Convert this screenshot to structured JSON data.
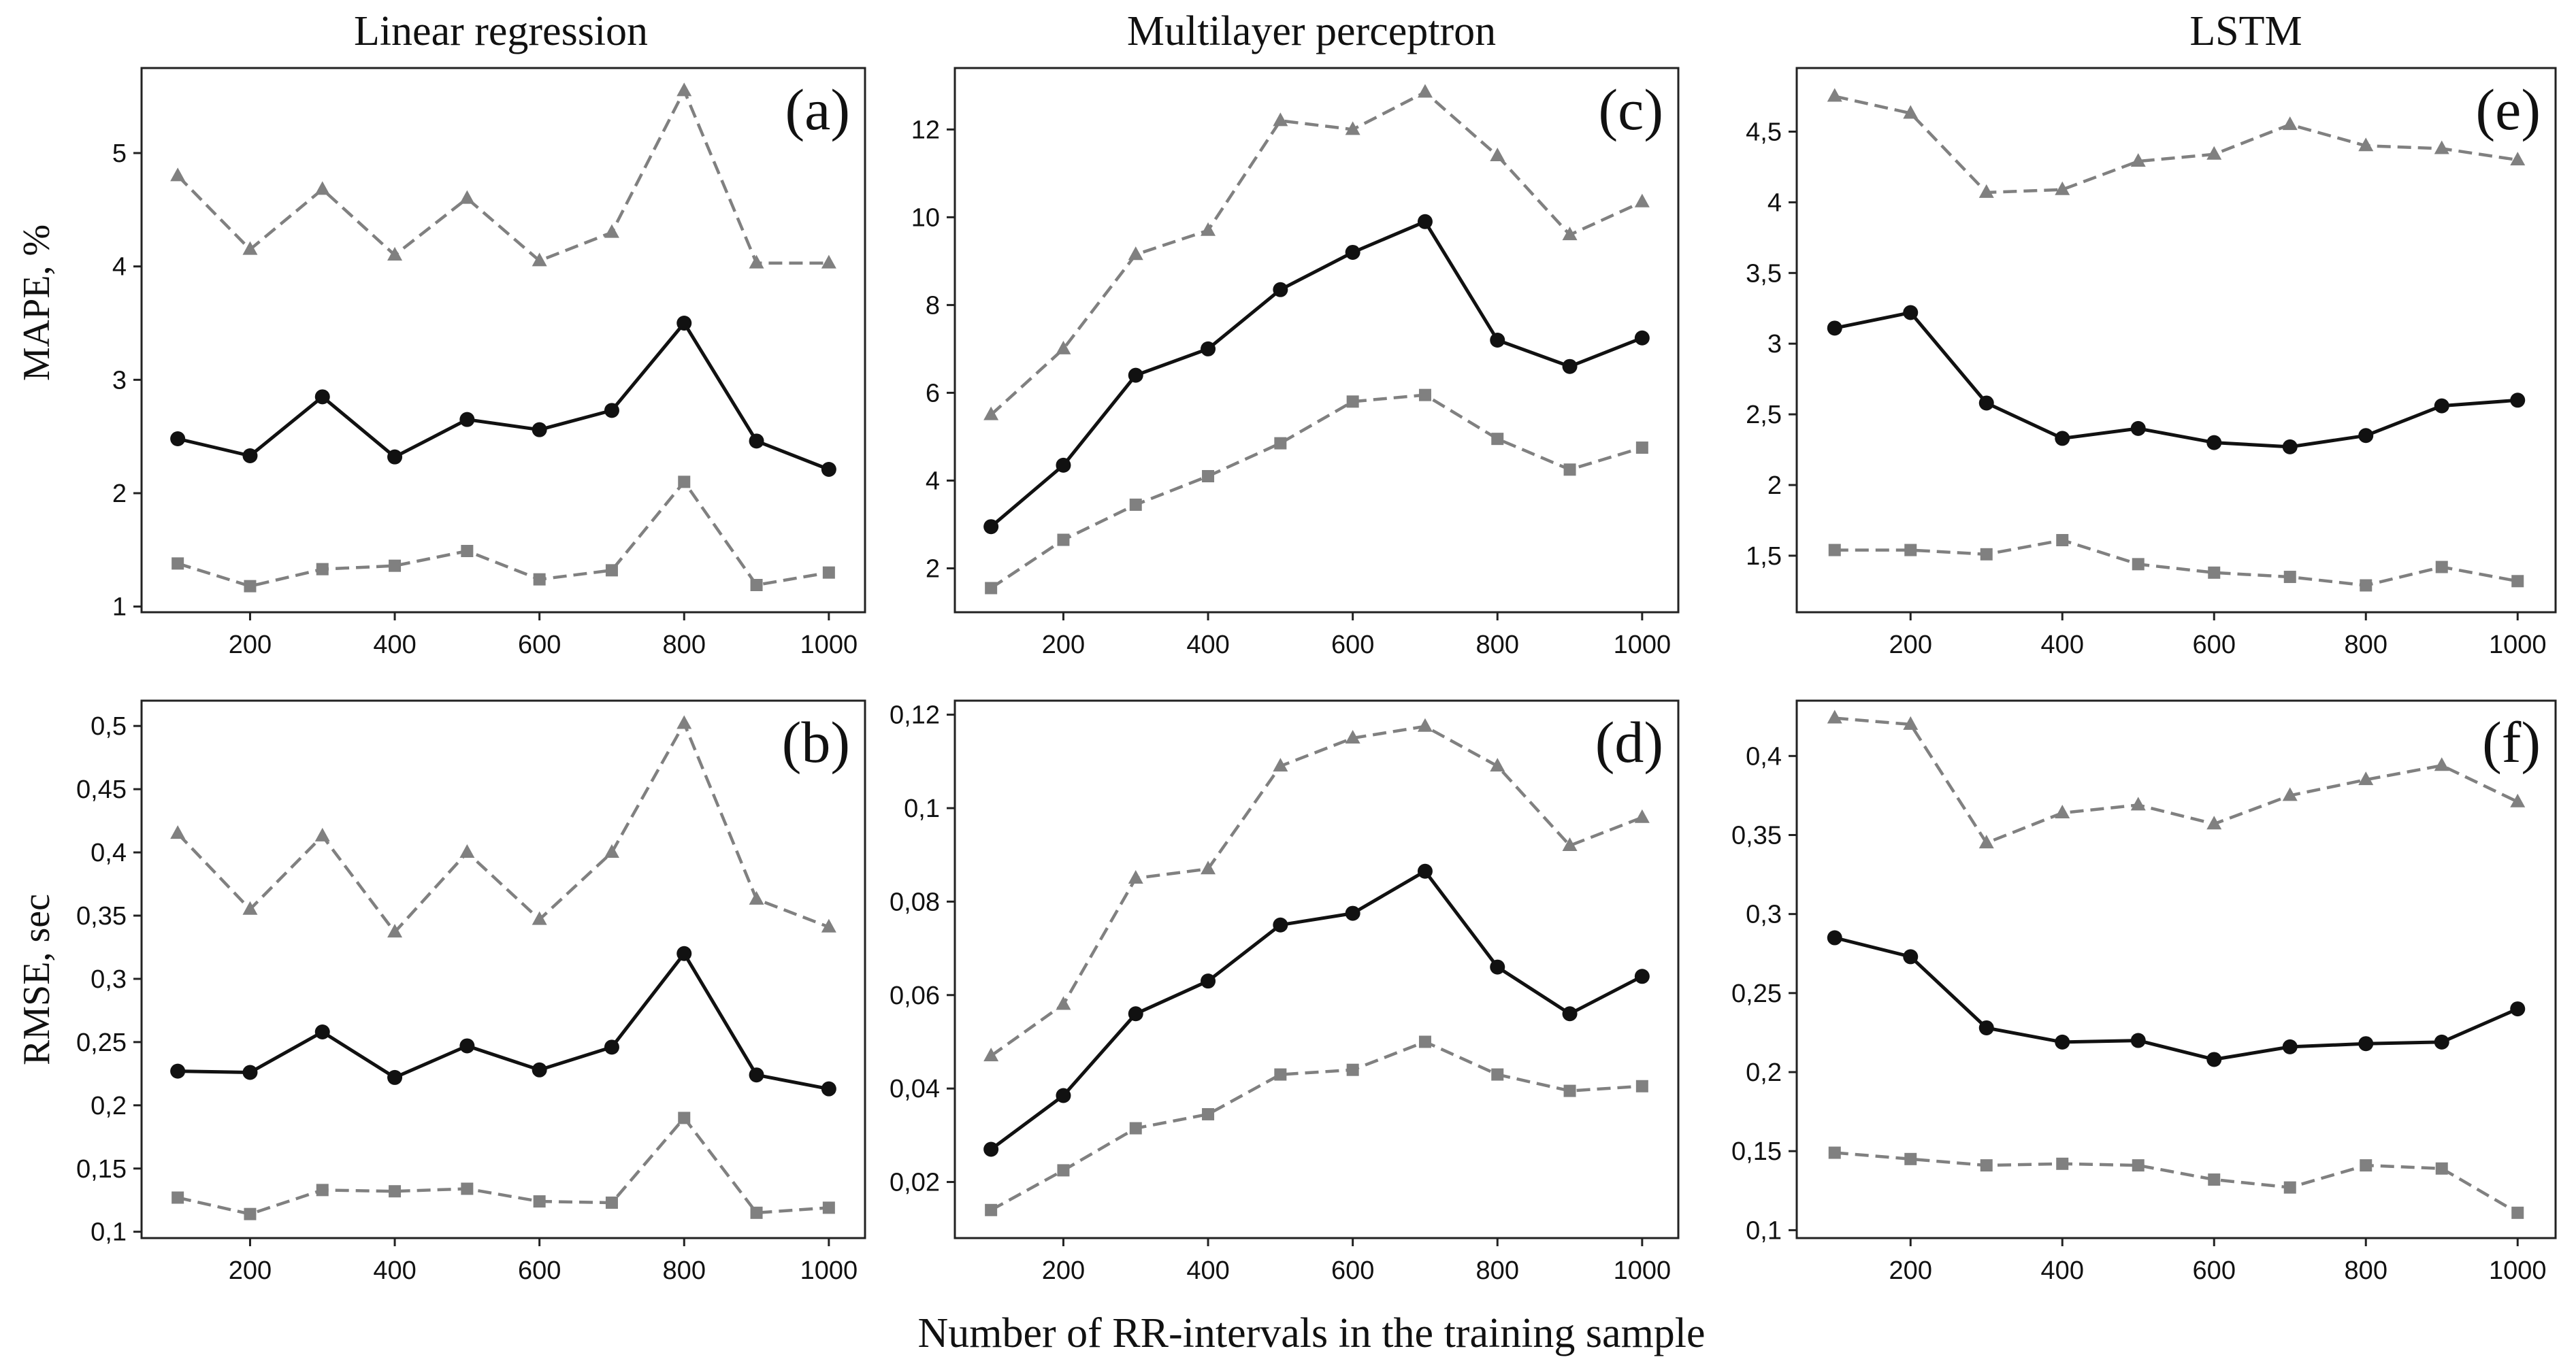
{
  "columns": [
    "Linear regression",
    "Multilayer perceptron",
    "LSTM"
  ],
  "xlabel": "Number of RR-intervals in the training sample",
  "row_ylabels": [
    "MAPE, %",
    "RMSE, sec"
  ],
  "colors": {
    "mean": "#111111",
    "bound": "#808080",
    "frame": "#222222"
  },
  "chart_data": [
    {
      "id": "a",
      "label": "(a)",
      "type": "line",
      "title": "Linear regression",
      "ylabel": "MAPE, %",
      "x": [
        100,
        200,
        300,
        400,
        500,
        600,
        700,
        800,
        900,
        1000
      ],
      "xticks": [
        200,
        400,
        600,
        800,
        1000
      ],
      "xlim": [
        50,
        1050
      ],
      "yticks": [
        1,
        2,
        3,
        4,
        5
      ],
      "ytick_labels": [
        "1",
        "2",
        "3",
        "4",
        "5"
      ],
      "ylim": [
        0.95,
        5.75
      ],
      "series": [
        {
          "name": "upper",
          "marker": "triangle",
          "style": "dashed",
          "values": [
            4.8,
            4.15,
            4.68,
            4.1,
            4.6,
            4.05,
            4.3,
            5.55,
            4.03,
            4.03
          ]
        },
        {
          "name": "mean",
          "marker": "circle",
          "style": "solid",
          "values": [
            2.48,
            2.33,
            2.85,
            2.32,
            2.65,
            2.56,
            2.73,
            3.5,
            2.46,
            2.21
          ]
        },
        {
          "name": "lower",
          "marker": "square",
          "style": "dashed",
          "values": [
            1.38,
            1.18,
            1.33,
            1.36,
            1.49,
            1.24,
            1.32,
            2.1,
            1.19,
            1.3
          ]
        }
      ]
    },
    {
      "id": "b",
      "label": "(b)",
      "type": "line",
      "title": "",
      "ylabel": "RMSE, sec",
      "x": [
        100,
        200,
        300,
        400,
        500,
        600,
        700,
        800,
        900,
        1000
      ],
      "xticks": [
        200,
        400,
        600,
        800,
        1000
      ],
      "xlim": [
        50,
        1050
      ],
      "yticks": [
        0.1,
        0.15,
        0.2,
        0.25,
        0.3,
        0.35,
        0.4,
        0.45,
        0.5
      ],
      "ytick_labels": [
        "0,1",
        "0,15",
        "0,2",
        "0,25",
        "0,3",
        "0,35",
        "0,4",
        "0,45",
        "0,5"
      ],
      "ylim": [
        0.095,
        0.52
      ],
      "series": [
        {
          "name": "upper",
          "marker": "triangle",
          "style": "dashed",
          "values": [
            0.415,
            0.355,
            0.413,
            0.337,
            0.4,
            0.347,
            0.4,
            0.502,
            0.363,
            0.341
          ]
        },
        {
          "name": "mean",
          "marker": "circle",
          "style": "solid",
          "values": [
            0.227,
            0.226,
            0.258,
            0.222,
            0.247,
            0.228,
            0.246,
            0.32,
            0.224,
            0.213
          ]
        },
        {
          "name": "lower",
          "marker": "square",
          "style": "dashed",
          "values": [
            0.127,
            0.114,
            0.133,
            0.132,
            0.134,
            0.124,
            0.123,
            0.19,
            0.115,
            0.119
          ]
        }
      ]
    },
    {
      "id": "c",
      "label": "(c)",
      "type": "line",
      "title": "Multilayer perceptron",
      "ylabel": "",
      "x": [
        100,
        200,
        300,
        400,
        500,
        600,
        700,
        800,
        900,
        1000
      ],
      "xticks": [
        200,
        400,
        600,
        800,
        1000
      ],
      "xlim": [
        50,
        1050
      ],
      "yticks": [
        2,
        4,
        6,
        8,
        10,
        12
      ],
      "ytick_labels": [
        "2",
        "4",
        "6",
        "8",
        "10",
        "12"
      ],
      "ylim": [
        1.0,
        13.4
      ],
      "series": [
        {
          "name": "upper",
          "marker": "triangle",
          "style": "dashed",
          "values": [
            5.5,
            7.0,
            9.15,
            9.7,
            12.2,
            12.0,
            12.85,
            11.4,
            9.6,
            10.35
          ]
        },
        {
          "name": "mean",
          "marker": "circle",
          "style": "solid",
          "values": [
            2.95,
            4.35,
            6.4,
            7.0,
            8.35,
            9.2,
            9.9,
            7.2,
            6.6,
            7.25
          ]
        },
        {
          "name": "lower",
          "marker": "square",
          "style": "dashed",
          "values": [
            1.55,
            2.65,
            3.45,
            4.1,
            4.85,
            5.8,
            5.95,
            4.95,
            4.25,
            4.75
          ]
        }
      ]
    },
    {
      "id": "d",
      "label": "(d)",
      "type": "line",
      "title": "",
      "ylabel": "",
      "x": [
        100,
        200,
        300,
        400,
        500,
        600,
        700,
        800,
        900,
        1000
      ],
      "xticks": [
        200,
        400,
        600,
        800,
        1000
      ],
      "xlim": [
        50,
        1050
      ],
      "yticks": [
        0.02,
        0.04,
        0.06,
        0.08,
        0.1,
        0.12
      ],
      "ytick_labels": [
        "0,02",
        "0,04",
        "0,06",
        "0,08",
        "0,1",
        "0,12"
      ],
      "ylim": [
        0.008,
        0.123
      ],
      "series": [
        {
          "name": "upper",
          "marker": "triangle",
          "style": "dashed",
          "values": [
            0.047,
            0.058,
            0.085,
            0.087,
            0.109,
            0.115,
            0.1175,
            0.109,
            0.092,
            0.098
          ]
        },
        {
          "name": "mean",
          "marker": "circle",
          "style": "solid",
          "values": [
            0.027,
            0.0385,
            0.056,
            0.063,
            0.075,
            0.0775,
            0.0865,
            0.066,
            0.056,
            0.064
          ]
        },
        {
          "name": "lower",
          "marker": "square",
          "style": "dashed",
          "values": [
            0.014,
            0.0225,
            0.0315,
            0.0345,
            0.043,
            0.044,
            0.05,
            0.043,
            0.0395,
            0.0405
          ]
        }
      ]
    },
    {
      "id": "e",
      "label": "(e)",
      "type": "line",
      "title": "LSTM",
      "ylabel": "",
      "x": [
        100,
        200,
        300,
        400,
        500,
        600,
        700,
        800,
        900,
        1000
      ],
      "xticks": [
        200,
        400,
        600,
        800,
        1000
      ],
      "xlim": [
        50,
        1050
      ],
      "yticks": [
        1.5,
        2,
        2.5,
        3,
        3.5,
        4,
        4.5
      ],
      "ytick_labels": [
        "1,5",
        "2",
        "2,5",
        "3",
        "3,5",
        "4",
        "4,5"
      ],
      "ylim": [
        1.1,
        4.95
      ],
      "series": [
        {
          "name": "upper",
          "marker": "triangle",
          "style": "dashed",
          "values": [
            4.75,
            4.63,
            4.07,
            4.09,
            4.29,
            4.34,
            4.55,
            4.4,
            4.38,
            4.3
          ]
        },
        {
          "name": "mean",
          "marker": "circle",
          "style": "solid",
          "values": [
            3.11,
            3.22,
            2.58,
            2.33,
            2.4,
            2.3,
            2.27,
            2.35,
            2.56,
            2.6
          ]
        },
        {
          "name": "lower",
          "marker": "square",
          "style": "dashed",
          "values": [
            1.54,
            1.54,
            1.51,
            1.61,
            1.44,
            1.38,
            1.35,
            1.29,
            1.42,
            1.32
          ]
        }
      ]
    },
    {
      "id": "f",
      "label": "(f)",
      "type": "line",
      "title": "",
      "ylabel": "",
      "x": [
        100,
        200,
        300,
        400,
        500,
        600,
        700,
        800,
        900,
        1000
      ],
      "xticks": [
        200,
        400,
        600,
        800,
        1000
      ],
      "xlim": [
        50,
        1050
      ],
      "yticks": [
        0.1,
        0.15,
        0.2,
        0.25,
        0.3,
        0.35,
        0.4
      ],
      "ytick_labels": [
        "0,1",
        "0,15",
        "0,2",
        "0,25",
        "0,3",
        "0,35",
        "0,4"
      ],
      "ylim": [
        0.095,
        0.435
      ],
      "series": [
        {
          "name": "upper",
          "marker": "triangle",
          "style": "dashed",
          "values": [
            0.424,
            0.42,
            0.345,
            0.364,
            0.369,
            0.357,
            0.375,
            0.385,
            0.394,
            0.371
          ]
        },
        {
          "name": "mean",
          "marker": "circle",
          "style": "solid",
          "values": [
            0.285,
            0.273,
            0.228,
            0.219,
            0.22,
            0.208,
            0.216,
            0.218,
            0.219,
            0.24
          ]
        },
        {
          "name": "lower",
          "marker": "square",
          "style": "dashed",
          "values": [
            0.149,
            0.145,
            0.141,
            0.142,
            0.141,
            0.132,
            0.127,
            0.141,
            0.139,
            0.111
          ]
        }
      ]
    }
  ]
}
